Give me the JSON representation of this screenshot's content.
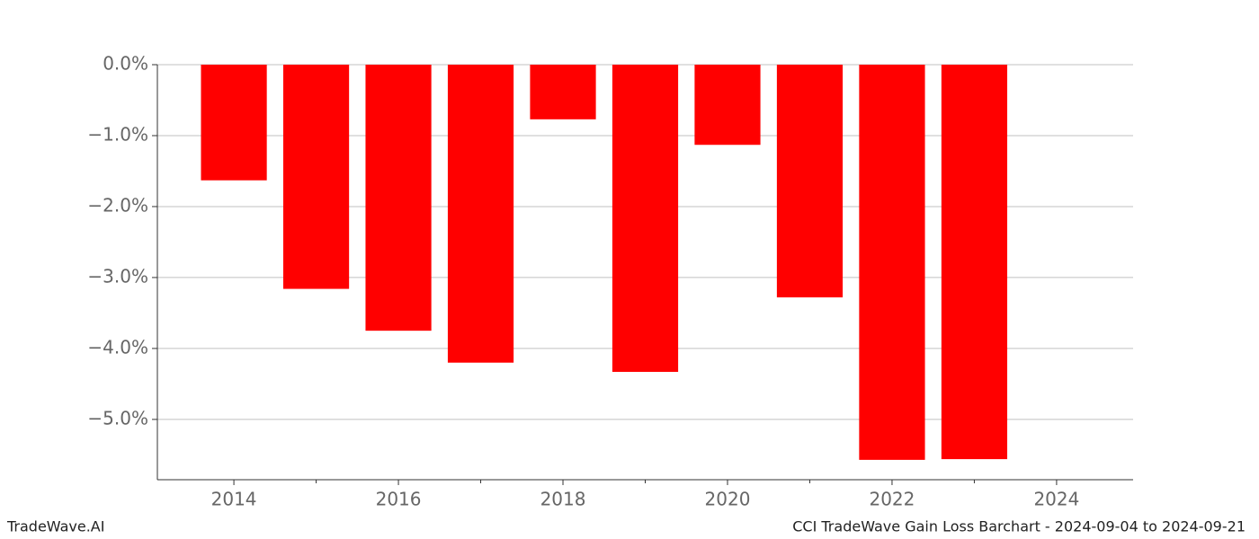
{
  "chart_data": {
    "type": "bar",
    "x": [
      2014,
      2015,
      2016,
      2017,
      2018,
      2019,
      2020,
      2021,
      2022,
      2023
    ],
    "values": [
      -1.63,
      -3.16,
      -3.75,
      -4.2,
      -0.77,
      -4.33,
      -1.13,
      -3.28,
      -5.57,
      -5.56
    ],
    "color": "#ff0000",
    "xlim": [
      2013.07,
      2024.93
    ],
    "xticks": [
      2014,
      2016,
      2018,
      2020,
      2022,
      2024
    ],
    "xminorticks": [
      2015,
      2017,
      2019,
      2021,
      2023
    ],
    "ylim": [
      -5.85,
      0
    ],
    "yticks": [
      {
        "value": 0,
        "label": "0.0%"
      },
      {
        "value": -1,
        "label": "−1.0%"
      },
      {
        "value": -2,
        "label": "−2.0%"
      },
      {
        "value": -3,
        "label": "−3.0%"
      },
      {
        "value": -4,
        "label": "−4.0%"
      },
      {
        "value": -5,
        "label": "−5.0%"
      }
    ],
    "grid": true
  },
  "footer": {
    "left": "TradeWave.AI",
    "right": "CCI TradeWave Gain Loss Barchart - 2024-09-04 to 2024-09-21"
  }
}
